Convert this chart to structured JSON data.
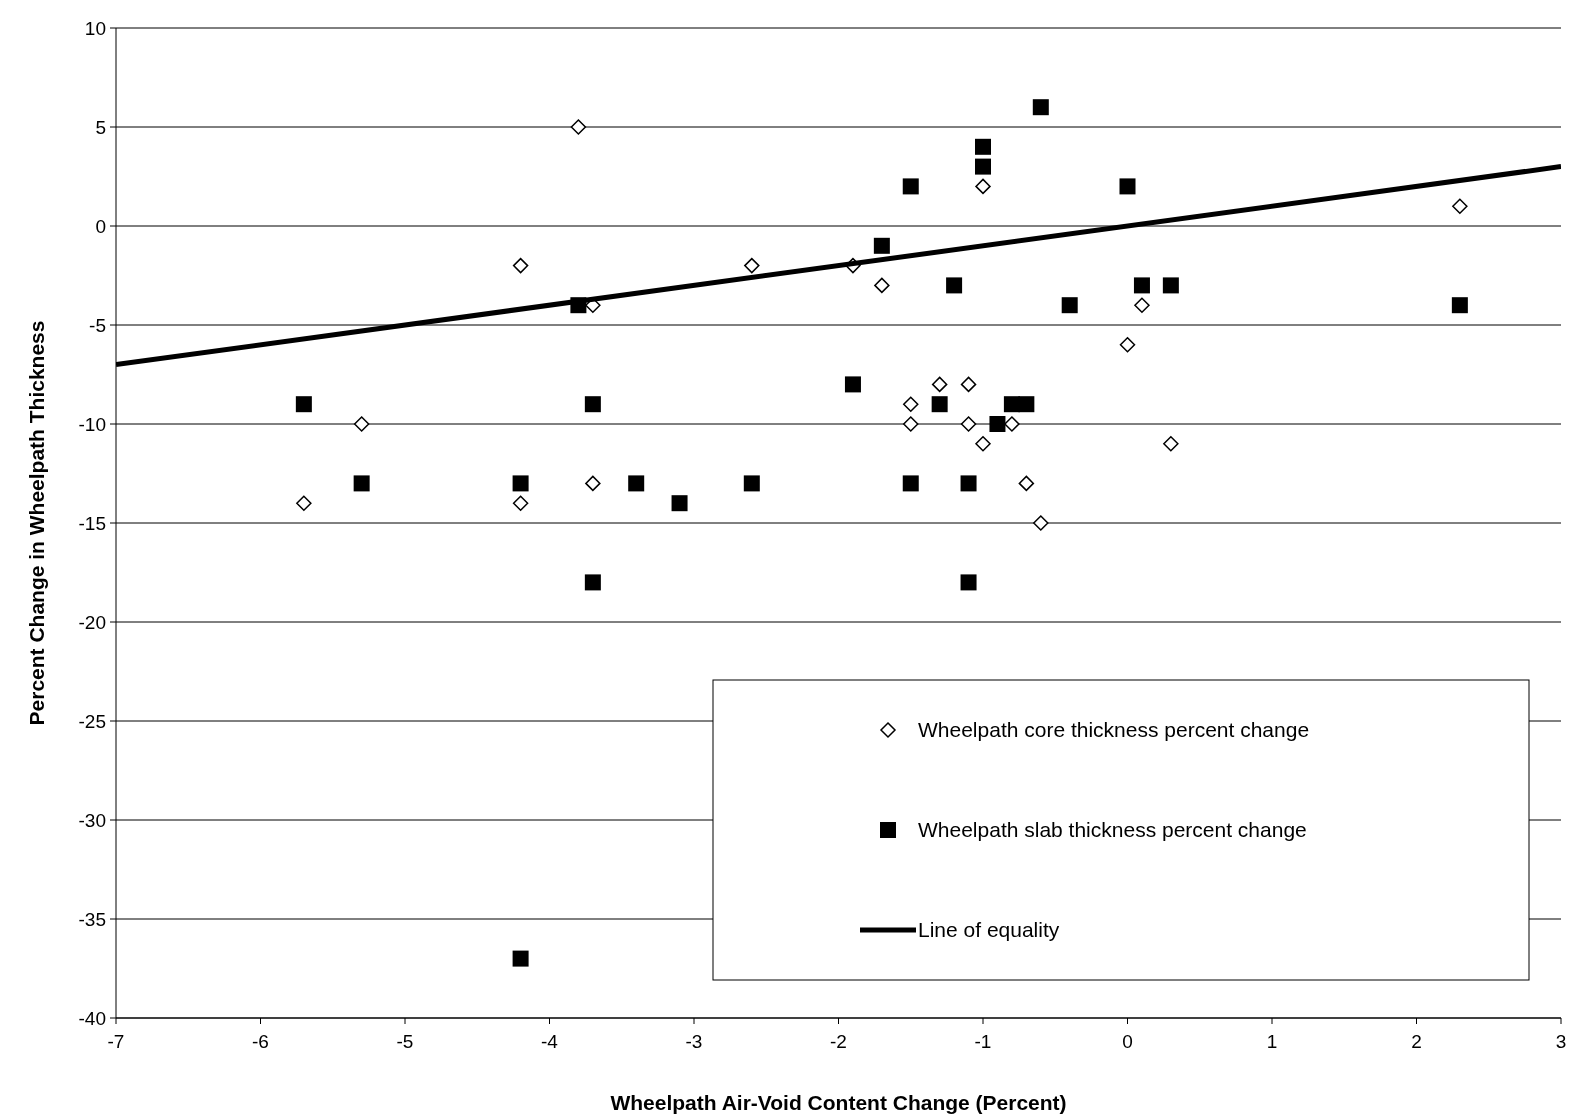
{
  "chart_data": {
    "type": "scatter",
    "xlabel": "Wheelpath Air-Void Content Change (Percent)",
    "ylabel": "Percent Change in Wheelpath Thickness",
    "xlim": [
      -7,
      3
    ],
    "xticks": [
      -7,
      -6,
      -5,
      -4,
      -3,
      -2,
      -1,
      0,
      1,
      2,
      3
    ],
    "ylim": [
      -40,
      10
    ],
    "yticks": [
      -40,
      -35,
      -30,
      -25,
      -20,
      -15,
      -10,
      -5,
      0,
      5,
      10
    ],
    "grid": "y",
    "legend": "bottom right",
    "series": [
      {
        "name": "Wheelpath core thickness percent change",
        "marker": "diamond",
        "color": "#000000",
        "x": [
          -5.7,
          -5.3,
          -4.2,
          -4.2,
          -3.8,
          -3.7,
          -3.7,
          -2.6,
          -1.9,
          -1.7,
          -1.5,
          -1.5,
          -1.3,
          -1.1,
          -1.1,
          -1.0,
          -1.0,
          -0.8,
          -0.7,
          -0.6,
          0,
          0.1,
          0.3,
          2.3
        ],
        "values": [
          -14,
          -10,
          -2,
          -14,
          5,
          -4,
          -13,
          -2,
          -2,
          -3,
          -9,
          -10,
          -8,
          -8,
          -10,
          2,
          -11,
          -10,
          -13,
          -15,
          -6,
          -4,
          -11,
          1
        ]
      },
      {
        "name": "Wheelpath slab thickness percent change",
        "marker": "square",
        "color": "#000000",
        "x": [
          -5.7,
          -5.3,
          -4.2,
          -4.2,
          -3.8,
          -3.7,
          -3.7,
          -3.4,
          -3.1,
          -2.6,
          -1.9,
          -1.7,
          -1.5,
          -1.5,
          -1.3,
          -1.2,
          -1.1,
          -1.1,
          -1.0,
          -1.0,
          -0.9,
          -0.8,
          -0.7,
          -0.6,
          -0.4,
          0,
          0.1,
          0.3,
          2.3
        ],
        "values": [
          -9,
          -13,
          -13,
          -37,
          -4,
          -9,
          -18,
          -13,
          -14,
          -13,
          -8,
          -1,
          2,
          -13,
          -9,
          -3,
          -13,
          -18,
          4,
          3,
          -10,
          -9,
          -9,
          6,
          -4,
          2,
          -3,
          -3,
          -4
        ]
      },
      {
        "name": "Line of equality",
        "type": "line",
        "marker": "none",
        "line_style": "solid",
        "color": "#000000",
        "x": [
          -7,
          3
        ],
        "values": [
          -7,
          3
        ]
      }
    ]
  }
}
